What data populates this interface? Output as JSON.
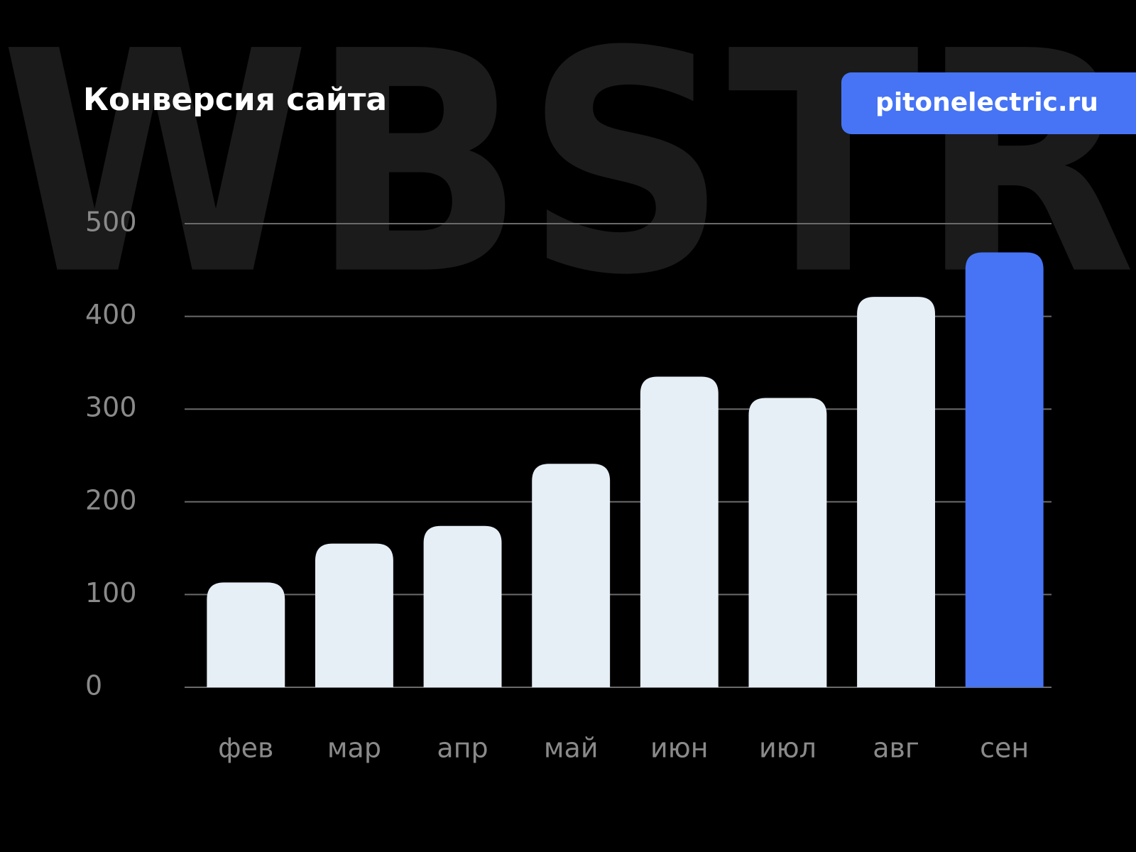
{
  "chart_data": {
    "type": "bar",
    "title": "Конверсия сайта",
    "badge": "pitonelectric.ru",
    "watermark": "WBSTR",
    "categories": [
      "фев",
      "мар",
      "апр",
      "май",
      "июн",
      "июл",
      "авг",
      "сен"
    ],
    "values": [
      113,
      155,
      174,
      241,
      335,
      312,
      421,
      469
    ],
    "colors": [
      "#e6eef6",
      "#e6eef6",
      "#e6eef6",
      "#e6eef6",
      "#e6eef6",
      "#e6eef6",
      "#e6eef6",
      "#4674f5"
    ],
    "ylim": [
      0,
      500
    ],
    "yticks": [
      0,
      100,
      200,
      300,
      400,
      500
    ],
    "grid": true
  }
}
